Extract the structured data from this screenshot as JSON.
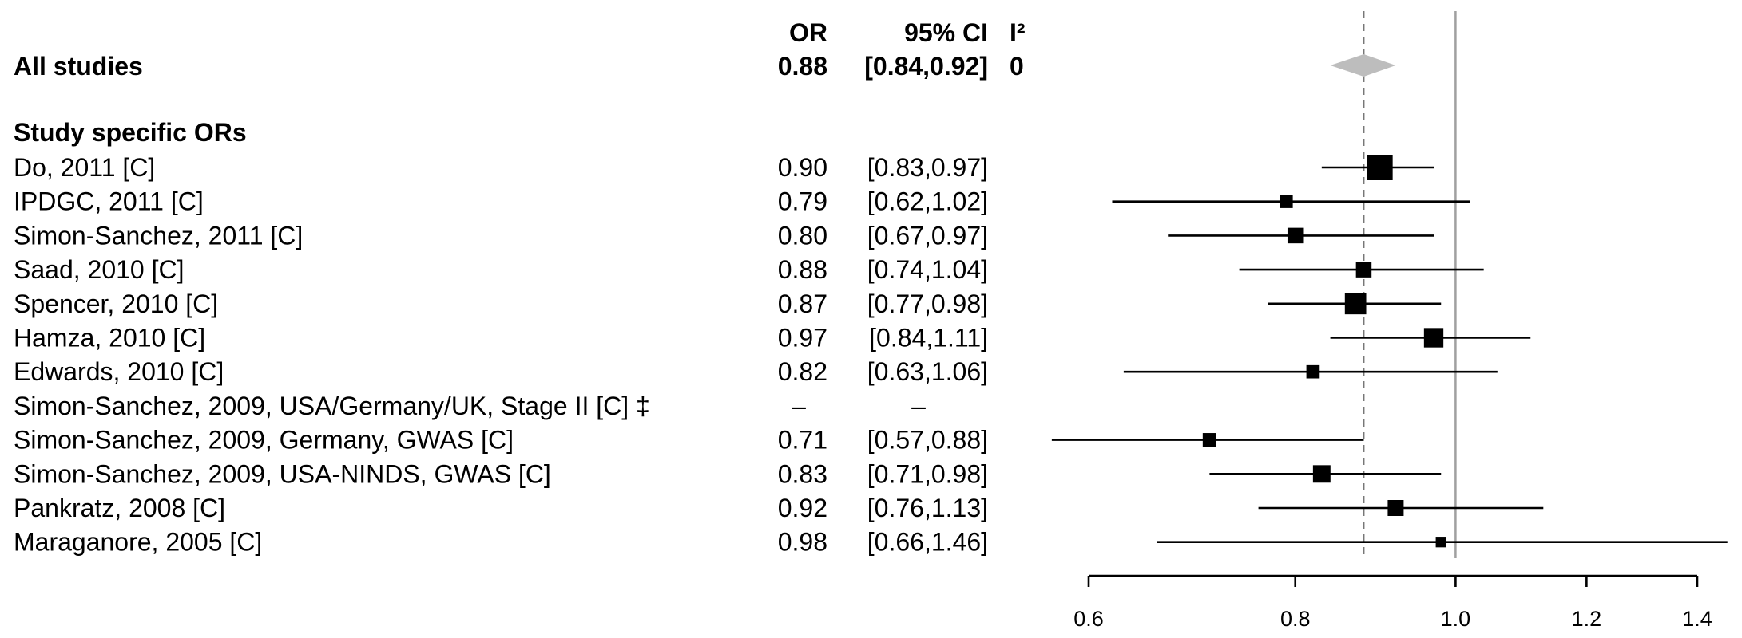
{
  "columns": {
    "or": "OR",
    "ci": "95% CI",
    "i2": "I²"
  },
  "chart_data": {
    "type": "forest",
    "summary": {
      "label": "All studies",
      "or_text": "0.88",
      "ci_text": "[0.84,0.92]",
      "i2_text": "0",
      "or": 0.88,
      "lo": 0.84,
      "hi": 0.92,
      "color": "#bdbdbd"
    },
    "section_label": "Study specific ORs",
    "studies": [
      {
        "label": "Do, 2011 [C]",
        "or_text": "0.90",
        "ci_text": "[0.83,0.97]",
        "or": 0.9,
        "lo": 0.83,
        "hi": 0.97,
        "weight": 1.0
      },
      {
        "label": "IPDGC, 2011 [C]",
        "or_text": "0.79",
        "ci_text": "[0.62,1.02]",
        "or": 0.79,
        "lo": 0.62,
        "hi": 1.02,
        "weight": 0.35
      },
      {
        "label": "Simon-Sanchez, 2011 [C]",
        "or_text": "0.80",
        "ci_text": "[0.67,0.97]",
        "or": 0.8,
        "lo": 0.67,
        "hi": 0.97,
        "weight": 0.48
      },
      {
        "label": "Saad, 2010 [C]",
        "or_text": "0.88",
        "ci_text": "[0.74,1.04]",
        "or": 0.88,
        "lo": 0.74,
        "hi": 1.04,
        "weight": 0.48
      },
      {
        "label": "Spencer, 2010 [C]",
        "or_text": "0.87",
        "ci_text": "[0.77,0.98]",
        "or": 0.87,
        "lo": 0.77,
        "hi": 0.98,
        "weight": 0.78
      },
      {
        "label": "Hamza, 2010 [C]",
        "or_text": "0.97",
        "ci_text": "[0.84,1.11]",
        "or": 0.97,
        "lo": 0.84,
        "hi": 1.11,
        "weight": 0.68
      },
      {
        "label": "Edwards, 2010 [C]",
        "or_text": "0.82",
        "ci_text": "[0.63,1.06]",
        "or": 0.82,
        "lo": 0.63,
        "hi": 1.06,
        "weight": 0.36
      },
      {
        "label": "Simon-Sanchez, 2009, USA/Germany/UK, Stage II [C] ‡",
        "or_text": "–",
        "ci_text": "–",
        "or": null,
        "lo": null,
        "hi": null,
        "weight": 0
      },
      {
        "label": "Simon-Sanchez, 2009, Germany, GWAS [C]",
        "or_text": "0.71",
        "ci_text": "[0.57,0.88]",
        "or": 0.71,
        "lo": 0.57,
        "hi": 0.88,
        "weight": 0.38
      },
      {
        "label": "Simon-Sanchez, 2009, USA-NINDS, GWAS [C]",
        "or_text": "0.83",
        "ci_text": "[0.71,0.98]",
        "or": 0.83,
        "lo": 0.71,
        "hi": 0.98,
        "weight": 0.58
      },
      {
        "label": "Pankratz, 2008 [C]",
        "or_text": "0.92",
        "ci_text": "[0.76,1.13]",
        "or": 0.92,
        "lo": 0.76,
        "hi": 1.13,
        "weight": 0.5
      },
      {
        "label": "Maraganore, 2005 [C]",
        "or_text": "0.98",
        "ci_text": "[0.66,1.46]",
        "or": 0.98,
        "lo": 0.66,
        "hi": 1.46,
        "weight": 0.22
      }
    ],
    "xaxis": {
      "scale": "log",
      "ticks": [
        0.6,
        0.8,
        1.0,
        1.2,
        1.4
      ],
      "tick_labels": [
        "0.6",
        "0.8",
        "1.0",
        "1.2",
        "1.4"
      ],
      "range": [
        0.6,
        1.4
      ]
    },
    "reference_lines": [
      {
        "value": 1.0,
        "style": "solid",
        "color": "#a0a0a0"
      },
      {
        "value": 0.88,
        "style": "dashed",
        "color": "#777777"
      }
    ]
  }
}
